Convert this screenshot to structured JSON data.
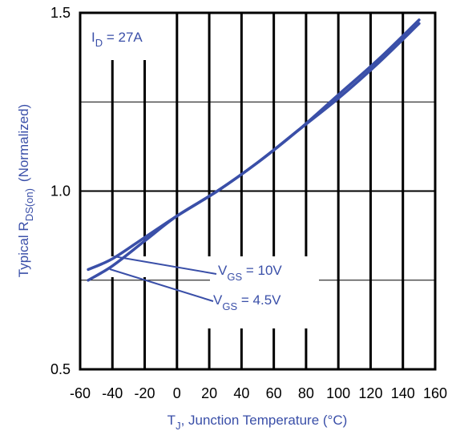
{
  "chart_data": {
    "type": "line",
    "xlabel": {
      "main": "T",
      "sub": "J",
      "rest": ", Junction Temperature (°C)"
    },
    "ylabel": {
      "main": "Typical R",
      "sub": "DS(on)",
      "rest": "(Normalized)"
    },
    "xlim": [
      -60,
      160
    ],
    "ylim": [
      0.5,
      1.5
    ],
    "xticks": [
      "-60",
      "-40",
      "-20",
      "0",
      "20",
      "40",
      "60",
      "80",
      "100",
      "120",
      "140",
      "160"
    ],
    "yticks": [
      "0.5",
      "1.0",
      "1.5"
    ],
    "grid": true,
    "annotation_id": {
      "main": "I",
      "sub": "D",
      "rest": " = 27A"
    },
    "series": [
      {
        "name": "VGS = 10V",
        "label": {
          "main": "V",
          "sub": "GS",
          "rest": " = 10V"
        },
        "x": [
          -55,
          -40,
          -20,
          0,
          25,
          50,
          75,
          100,
          125,
          150
        ],
        "y": [
          0.75,
          0.79,
          0.86,
          0.93,
          1.0,
          1.08,
          1.17,
          1.27,
          1.37,
          1.48
        ]
      },
      {
        "name": "VGS = 4.5V",
        "label": {
          "main": "V",
          "sub": "GS",
          "rest": " = 4.5V"
        },
        "x": [
          -55,
          -40,
          -20,
          0,
          25,
          50,
          75,
          100,
          125,
          150
        ],
        "y": [
          0.78,
          0.81,
          0.87,
          0.93,
          1.0,
          1.08,
          1.17,
          1.26,
          1.36,
          1.47
        ]
      }
    ],
    "colors": {
      "series": "#3a4fa8",
      "axis_title": "#3a4fa8",
      "grid": "#000000"
    }
  }
}
